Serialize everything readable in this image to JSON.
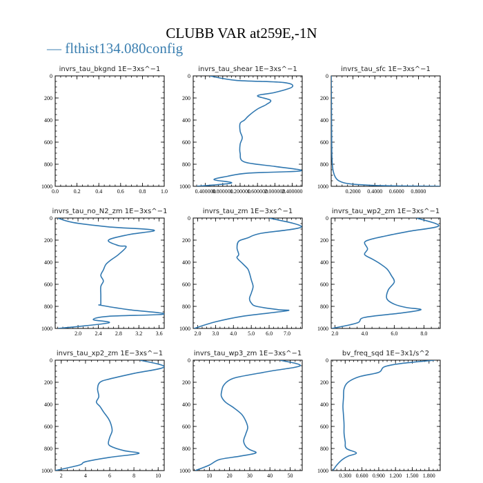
{
  "title": "CLUBB VAR at259E,-1N",
  "legend": {
    "label": "flthist134.080config",
    "color": "#2f77b0"
  },
  "chart_data": [
    {
      "type": "line",
      "title": "invrs_tau_bkgnd   1E−3xs^−1",
      "xlim": [
        0,
        1
      ],
      "ylim": [
        1000,
        0
      ],
      "xticks": [
        0,
        0.2,
        0.4,
        0.6,
        0.8,
        1.0
      ],
      "xticklabels": [
        "0.0",
        "0.2",
        "0.4",
        "0.6",
        "0.8",
        "1.0"
      ],
      "yticks": [
        0,
        200,
        400,
        600,
        800,
        1000
      ],
      "series": [
        {
          "x": [],
          "y": []
        }
      ]
    },
    {
      "type": "line",
      "title": "invrs_tau_shear   1E−3xs^−1",
      "xlim": [
        0.12,
        2.63
      ],
      "ylim": [
        1000,
        0
      ],
      "xticks": [
        0.4,
        0.8,
        1.2,
        1.6,
        2.0,
        2.4
      ],
      "xticklabels": [
        "0.400000",
        "0.800000",
        "1.200000",
        "1.600000",
        "2.000000",
        "2.400000"
      ],
      "yticks": [
        0,
        200,
        400,
        600,
        800,
        1000
      ],
      "series": [
        {
          "x": [
            0.5,
            1.1,
            2.2,
            2.4,
            2.0,
            1.6,
            1.9,
            1.8,
            1.6,
            1.4,
            1.3,
            1.2,
            1.2,
            1.25,
            1.2,
            1.2,
            1.3,
            2.0,
            2.6,
            1.4,
            0.9,
            0.6,
            1.0,
            0.2
          ],
          "y": [
            0,
            40,
            60,
            100,
            150,
            180,
            220,
            260,
            300,
            360,
            400,
            430,
            500,
            560,
            620,
            700,
            780,
            820,
            860,
            880,
            910,
            940,
            970,
            1000
          ]
        }
      ]
    },
    {
      "type": "line",
      "title": "invrs_tau_sfc   1E−3xs^−1",
      "xlim": [
        0,
        1.0
      ],
      "ylim": [
        1000,
        0
      ],
      "xticks": [
        0.2,
        0.4,
        0.6,
        0.8
      ],
      "xticklabels": [
        "0.2000",
        "0.4000",
        "0.6000",
        "0.8000"
      ],
      "yticks": [
        0,
        200,
        400,
        600,
        800,
        1000
      ],
      "series": [
        {
          "x": [
            0,
            0.002,
            0.004,
            0.006,
            0.01,
            0.02,
            0.04,
            0.07,
            0.15,
            0.35,
            0.6,
            1.0
          ],
          "y": [
            0,
            200,
            500,
            700,
            800,
            870,
            920,
            950,
            975,
            990,
            996,
            1000
          ]
        }
      ]
    },
    {
      "type": "line",
      "title": "invrs_tau_no_N2_zm   1E−3xs^−1",
      "xlim": [
        1.55,
        3.7
      ],
      "ylim": [
        1000,
        0
      ],
      "xticks": [
        2.0,
        2.4,
        2.8,
        3.2,
        3.6
      ],
      "xticklabels": [
        "2.0",
        "2.4",
        "2.8",
        "3.2",
        "3.6"
      ],
      "yticks": [
        0,
        200,
        400,
        600,
        800,
        1000
      ],
      "series": [
        {
          "x": [
            1.6,
            1.9,
            2.6,
            3.5,
            3.0,
            2.6,
            2.8,
            2.95,
            2.8,
            2.65,
            2.55,
            2.5,
            2.45,
            2.5,
            2.45,
            2.45,
            2.45,
            2.45,
            3.0,
            3.7,
            2.6,
            2.3,
            2.6,
            1.6
          ],
          "y": [
            0,
            40,
            80,
            110,
            150,
            200,
            250,
            260,
            330,
            380,
            420,
            470,
            520,
            570,
            620,
            700,
            780,
            790,
            830,
            870,
            890,
            920,
            950,
            1000
          ]
        }
      ]
    },
    {
      "type": "line",
      "title": "invrs_tau_zm   1E−3xs^−1",
      "xlim": [
        1.75,
        7.85
      ],
      "ylim": [
        1000,
        0
      ],
      "xticks": [
        2.0,
        3.0,
        4.0,
        5.0,
        6.0,
        7.0
      ],
      "xticklabels": [
        "2.0",
        "3.0",
        "4.0",
        "5.0",
        "6.0",
        "7.0"
      ],
      "yticks": [
        0,
        200,
        400,
        600,
        800,
        1000
      ],
      "series": [
        {
          "x": [
            6.0,
            7.8,
            5.5,
            4.8,
            4.3,
            4.2,
            4.3,
            4.2,
            4.5,
            4.8,
            4.9,
            5.0,
            5.1,
            5.0,
            4.9,
            5.0,
            5.3,
            6.5,
            7.0,
            4.5,
            3.0,
            1.8
          ],
          "y": [
            0,
            80,
            140,
            180,
            210,
            270,
            330,
            360,
            410,
            460,
            500,
            560,
            620,
            680,
            730,
            770,
            800,
            830,
            840,
            890,
            940,
            1000
          ]
        }
      ]
    },
    {
      "type": "line",
      "title": "invrs_tau_wp2_zm   1E−3xs^−1",
      "xlim": [
        1.75,
        9.1
      ],
      "ylim": [
        1000,
        0
      ],
      "xticks": [
        2,
        4,
        6,
        8
      ],
      "xticklabels": [
        "2.0",
        "4.0",
        "6.0",
        "8.0"
      ],
      "yticks": [
        0,
        200,
        400,
        600,
        800,
        1000
      ],
      "series": [
        {
          "x": [
            7.5,
            9.0,
            7.0,
            5.5,
            4.5,
            4.0,
            4.2,
            4.0,
            4.5,
            5.0,
            5.5,
            5.8,
            6.0,
            5.6,
            5.5,
            6.0,
            6.8,
            7.8,
            6.5,
            4.0,
            3.5,
            1.8
          ],
          "y": [
            0,
            70,
            120,
            160,
            190,
            220,
            280,
            330,
            370,
            410,
            460,
            520,
            580,
            650,
            730,
            780,
            810,
            830,
            860,
            900,
            950,
            1000
          ]
        }
      ]
    },
    {
      "type": "line",
      "title": "invrs_tau_xp2_zm   1E−3xs^−1",
      "xlim": [
        1.5,
        10.5
      ],
      "ylim": [
        1000,
        0
      ],
      "xticks": [
        2,
        4,
        6,
        8,
        10
      ],
      "xticklabels": [
        "2",
        "4",
        "6",
        "8",
        "10"
      ],
      "yticks": [
        0,
        200,
        400,
        600,
        800,
        1000
      ],
      "series": [
        {
          "x": [
            8.5,
            10.5,
            8.0,
            6.0,
            5.2,
            5.0,
            5.1,
            4.9,
            5.2,
            5.5,
            5.9,
            6.1,
            6.2,
            6.0,
            5.9,
            6.3,
            7.2,
            8.4,
            6.0,
            4.0,
            3.5,
            1.5
          ],
          "y": [
            0,
            60,
            120,
            170,
            200,
            260,
            330,
            380,
            420,
            470,
            530,
            580,
            640,
            700,
            760,
            790,
            820,
            845,
            880,
            920,
            950,
            1000
          ]
        }
      ]
    },
    {
      "type": "line",
      "title": "invrs_tau_wp3_zm   1E−3xs^−1",
      "xlim": [
        2,
        56
      ],
      "ylim": [
        1000,
        0
      ],
      "xticks": [
        10,
        20,
        30,
        40,
        50
      ],
      "xticklabels": [
        "10",
        "20",
        "30",
        "40",
        "50"
      ],
      "yticks": [
        0,
        200,
        400,
        600,
        800,
        1000
      ],
      "series": [
        {
          "x": [
            45,
            55,
            40,
            25,
            20,
            17,
            16,
            16,
            18,
            22,
            26,
            28,
            29,
            28,
            27,
            28,
            30,
            33,
            25,
            15,
            10,
            3
          ],
          "y": [
            0,
            50,
            100,
            150,
            180,
            230,
            290,
            330,
            380,
            430,
            490,
            550,
            610,
            670,
            730,
            780,
            810,
            840,
            870,
            900,
            950,
            1000
          ]
        }
      ]
    },
    {
      "type": "line",
      "title": "bv_freq_sqd   1E−3x1/s^2",
      "xlim": [
        0.05,
        2.0
      ],
      "ylim": [
        1000,
        0
      ],
      "xticks": [
        0.3,
        0.6,
        0.9,
        1.2,
        1.5,
        1.8
      ],
      "xticklabels": [
        "0.300",
        "0.600",
        "0.900",
        "1.200",
        "1.500",
        "1.800"
      ],
      "yticks": [
        0,
        200,
        400,
        600,
        800,
        1000
      ],
      "series": [
        {
          "x": [
            1.9,
            1.3,
            1.0,
            0.9,
            0.55,
            0.35,
            0.28,
            0.27,
            0.26,
            0.27,
            0.28,
            0.28,
            0.3,
            0.32,
            0.5,
            0.35,
            0.25,
            0.15,
            0.08
          ],
          "y": [
            0,
            30,
            60,
            110,
            150,
            200,
            260,
            340,
            420,
            500,
            580,
            660,
            740,
            800,
            840,
            870,
            900,
            950,
            1000
          ]
        }
      ]
    }
  ]
}
